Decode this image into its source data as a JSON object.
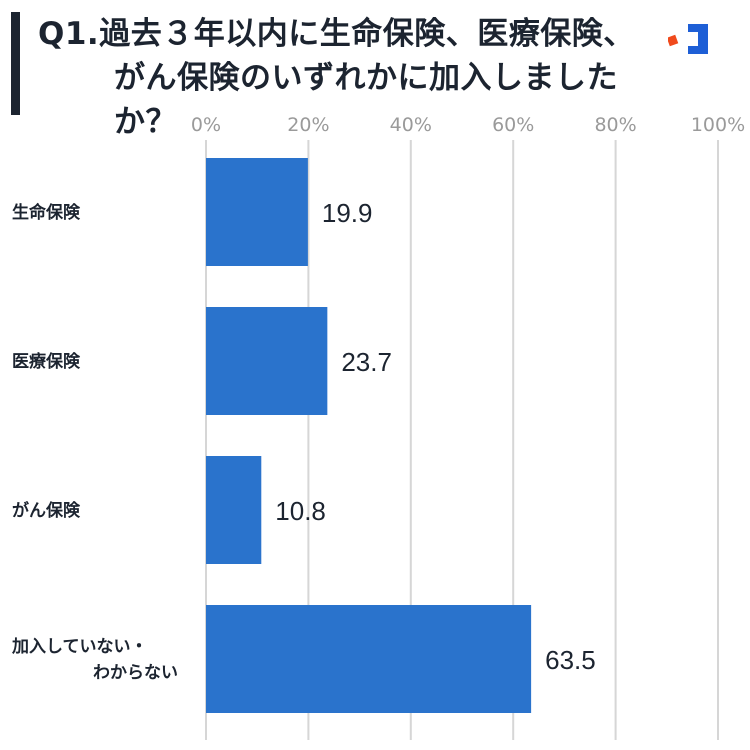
{
  "title": {
    "line1": "Q1.過去３年以内に生命保険、医療保険、",
    "line2": "がん保険のいずれかに加入しましたか？"
  },
  "colors": {
    "bar": "#2a73cc",
    "grid": "#d6d6d6",
    "title_bar": "#1c2430",
    "logo_blue": "#1e5fd6",
    "logo_red": "#f04a1c"
  },
  "chart_data": {
    "type": "bar",
    "orientation": "horizontal",
    "categories": [
      [
        "生命保険"
      ],
      [
        "医療保険"
      ],
      [
        "がん保険"
      ],
      [
        "加入していない・",
        "わからない"
      ]
    ],
    "values": [
      19.9,
      23.7,
      10.8,
      63.5
    ],
    "value_labels": [
      "19.9",
      "23.7",
      "10.8",
      "63.5"
    ],
    "xticks": [
      "0%",
      "20%",
      "40%",
      "60%",
      "80%",
      "100%"
    ],
    "xlim": [
      0,
      100
    ],
    "grid": true,
    "legend": "none"
  }
}
